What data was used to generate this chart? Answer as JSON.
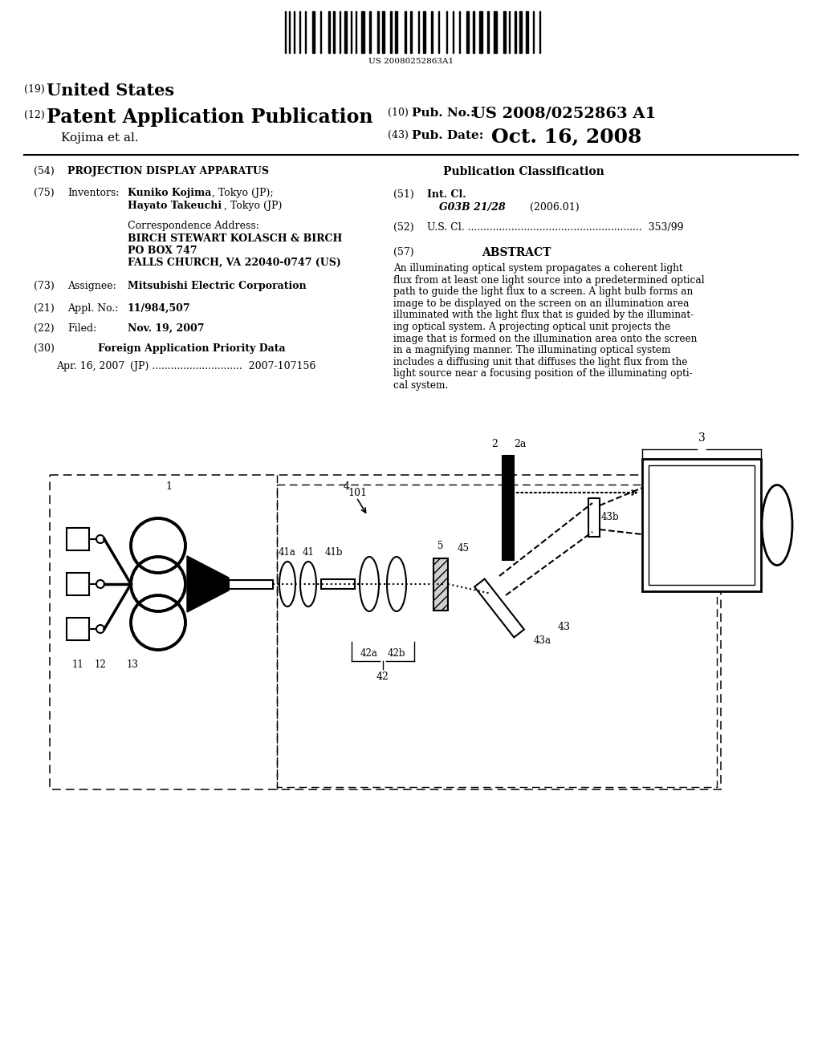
{
  "bg_color": "#ffffff",
  "barcode_text": "US 20080252863A1",
  "pub_no": "US 2008/0252863 A1",
  "pub_date": "Oct. 16, 2008",
  "abstract_lines": [
    "An illuminating optical system propagates a coherent light",
    "flux from at least one light source into a predetermined optical",
    "path to guide the light flux to a screen. A light bulb forms an",
    "image to be displayed on the screen on an illumination area",
    "illuminated with the light flux that is guided by the illuminat-",
    "ing optical system. A projecting optical unit projects the",
    "image that is formed on the illumination area onto the screen",
    "in a magnifying manner. The illuminating optical system",
    "includes a diffusing unit that diffuses the light flux from the",
    "light source near a focusing position of the illuminating opti-",
    "cal system."
  ]
}
